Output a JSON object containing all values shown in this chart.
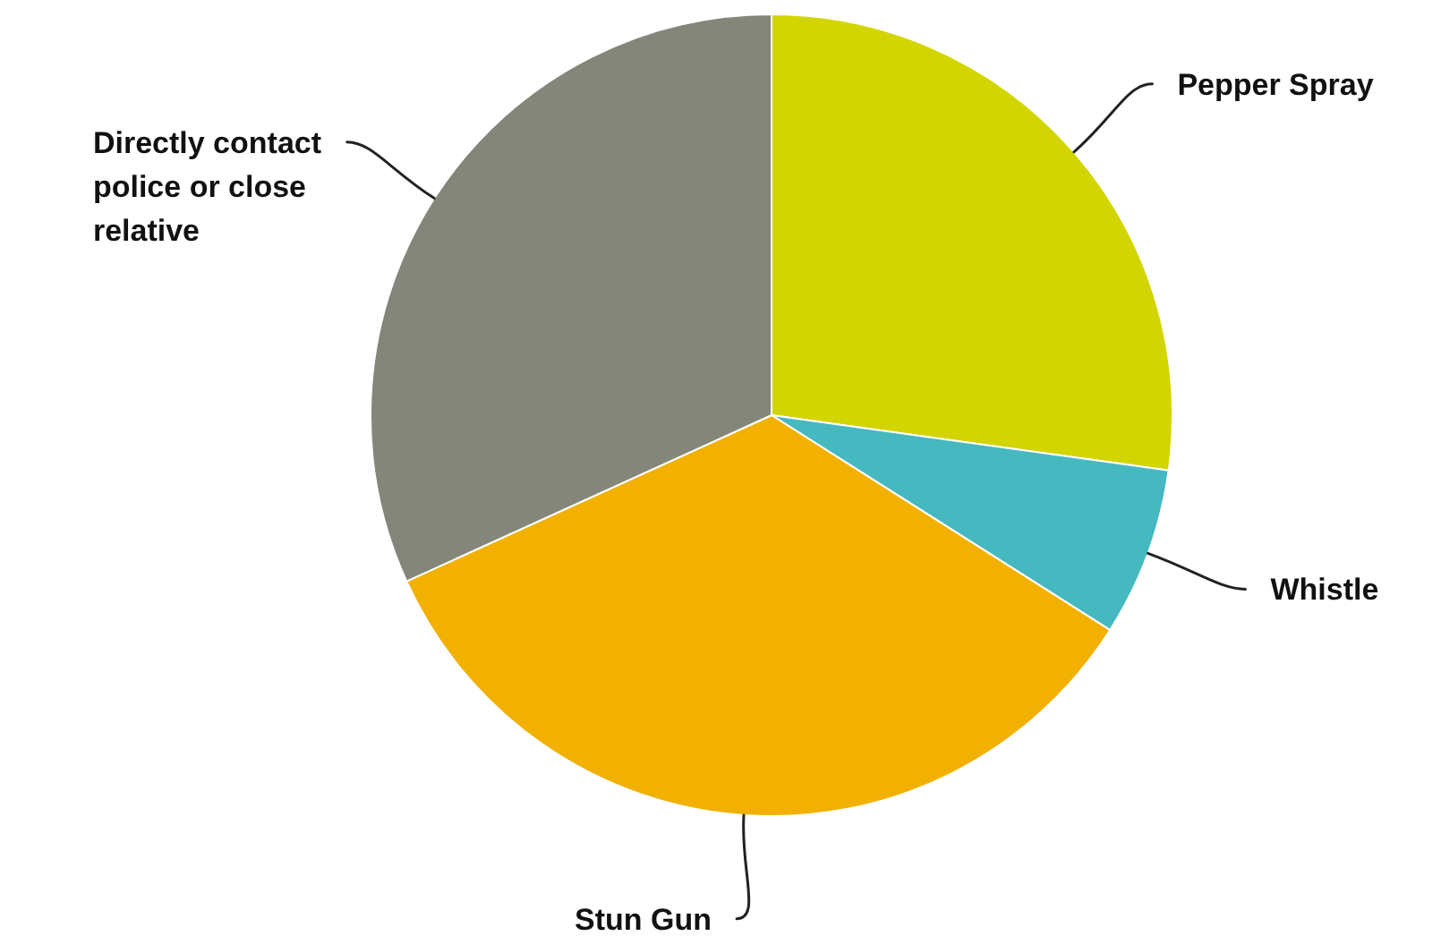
{
  "chart_data": {
    "type": "pie",
    "categories": [
      "Pepper Spray",
      "Whistle",
      "Stun Gun",
      "Directly contact police or close relative"
    ],
    "values": [
      27.2,
      6.8,
      34.2,
      31.8
    ],
    "colors": [
      "#d2d500",
      "#46b8c0",
      "#f2b000",
      "#85867a"
    ]
  }
}
